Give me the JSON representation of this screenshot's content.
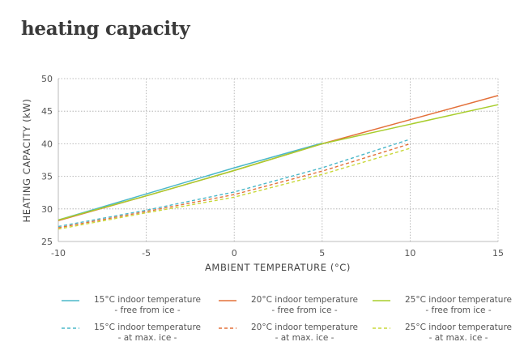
{
  "title": "heating capacity",
  "chart_data": {
    "type": "line",
    "xlabel": "AMBIENT TEMPERATURE  (°C)",
    "ylabel": "HEATING CAPACITY  (kW)",
    "xlim": [
      -10,
      15
    ],
    "ylim": [
      25,
      50
    ],
    "x_ticks": [
      "-10",
      "-5",
      "0",
      "5",
      "10",
      "15"
    ],
    "y_ticks": [
      "25",
      "30",
      "35",
      "40",
      "45",
      "50"
    ],
    "grid": true,
    "legend_position": "bottom",
    "series": [
      {
        "name": "15°C indoor temperature",
        "sub": "- free from ice -",
        "color": "#4bb8c9",
        "dashed": false,
        "x": [
          -10,
          -5,
          0,
          5
        ],
        "values": [
          28.3,
          32.3,
          36.3,
          40.1
        ]
      },
      {
        "name": "20°C indoor temperature",
        "sub": "- free from ice -",
        "color": "#e3703a",
        "dashed": false,
        "x": [
          -10,
          -5,
          0,
          5,
          10,
          15
        ],
        "values": [
          28.2,
          32.0,
          35.9,
          40.0,
          43.7,
          47.4
        ]
      },
      {
        "name": "25°C indoor temperature",
        "sub": "- free from ice -",
        "color": "#a8cd2c",
        "dashed": false,
        "x": [
          -10,
          -5,
          0,
          5,
          10,
          15
        ],
        "values": [
          28.3,
          32.0,
          35.9,
          40.0,
          43.0,
          46.0
        ]
      },
      {
        "name": "15°C indoor temperature",
        "sub": "- at max. ice -",
        "color": "#4bb8c9",
        "dashed": true,
        "x": [
          -10,
          -5,
          0,
          5,
          10
        ],
        "values": [
          27.3,
          29.8,
          32.6,
          36.3,
          40.7
        ]
      },
      {
        "name": "20°C indoor temperature",
        "sub": "- at max. ice -",
        "color": "#e3703a",
        "dashed": true,
        "x": [
          -10,
          -5,
          0,
          5,
          10
        ],
        "values": [
          27.1,
          29.6,
          32.2,
          35.8,
          40.0
        ]
      },
      {
        "name": "25°C indoor temperature",
        "sub": "- at max. ice -",
        "color": "#c9d83a",
        "dashed": true,
        "x": [
          -10,
          -5,
          0,
          5,
          10
        ],
        "values": [
          26.9,
          29.4,
          31.8,
          35.3,
          39.3
        ]
      }
    ]
  }
}
